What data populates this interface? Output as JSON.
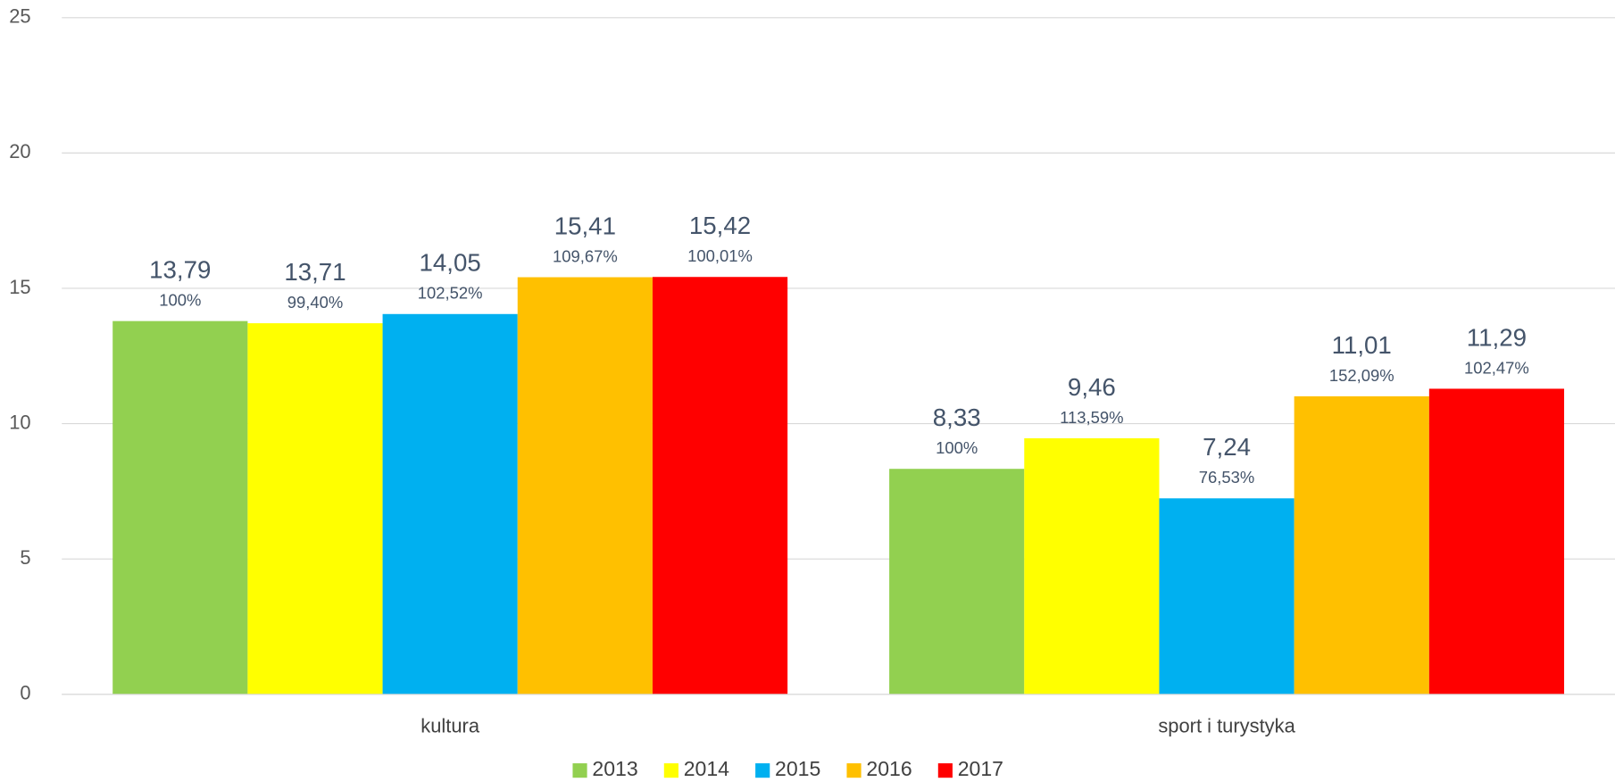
{
  "chart_data": {
    "type": "bar",
    "categories": [
      "kultura",
      "sport i turystyka"
    ],
    "series": [
      {
        "name": "2013",
        "color": "#92d050",
        "values": [
          13.79,
          8.33
        ],
        "value_labels": [
          "13,79",
          "8,33"
        ],
        "percent_labels": [
          "100%",
          "100%"
        ]
      },
      {
        "name": "2014",
        "color": "#ffff00",
        "values": [
          13.71,
          9.46
        ],
        "value_labels": [
          "13,71",
          "9,46"
        ],
        "percent_labels": [
          "99,40%",
          "113,59%"
        ]
      },
      {
        "name": "2015",
        "color": "#00b0f0",
        "values": [
          14.05,
          7.24
        ],
        "value_labels": [
          "14,05",
          "7,24"
        ],
        "percent_labels": [
          "102,52%",
          "76,53%"
        ]
      },
      {
        "name": "2016",
        "color": "#ffc000",
        "values": [
          15.41,
          11.01
        ],
        "value_labels": [
          "15,41",
          "11,01"
        ],
        "percent_labels": [
          "109,67%",
          "152,09%"
        ]
      },
      {
        "name": "2017",
        "color": "#ff0000",
        "values": [
          15.42,
          11.29
        ],
        "value_labels": [
          "15,42",
          "11,29"
        ],
        "percent_labels": [
          "100,01%",
          "102,47%"
        ]
      }
    ],
    "ylim": [
      0,
      25
    ],
    "yticks": [
      0,
      5,
      10,
      15,
      20,
      25
    ],
    "grid": true,
    "legend": "bottom"
  }
}
